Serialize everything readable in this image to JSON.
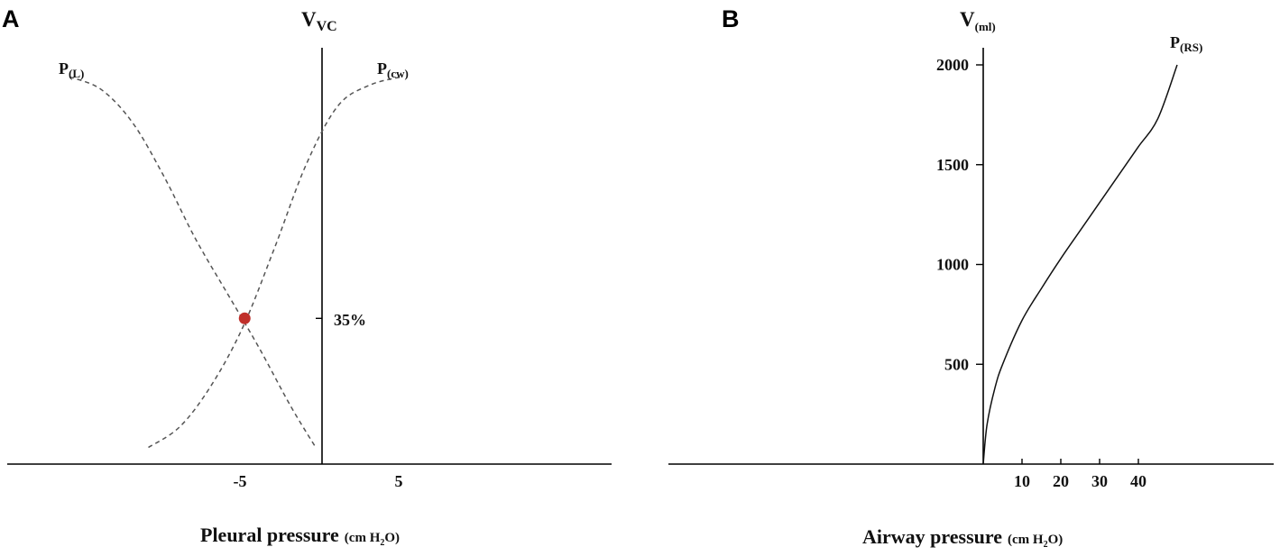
{
  "panels": {
    "a": {
      "letter": "A",
      "y_axis_label": {
        "main": "V",
        "sub": "VC"
      },
      "x_axis_title": {
        "main": "Pleural  pressure",
        "unit_pre": "(cm H",
        "unit_sub": "2",
        "unit_post": "O)"
      },
      "x_ticks": [
        "-5",
        "5"
      ],
      "equilibrium_label": "35%",
      "curve_labels": {
        "lung": {
          "main": "P",
          "sub": "(L)"
        },
        "chest_wall": {
          "main": "P",
          "sub": "(cw)"
        }
      },
      "marker_color": "#c0302b"
    },
    "b": {
      "letter": "B",
      "y_axis_label": {
        "main": "V",
        "sub": "(ml)"
      },
      "x_axis_title": {
        "main": "Airway  pressure",
        "unit_pre": "(cm H",
        "unit_sub": "2",
        "unit_post": "O)"
      },
      "y_ticks": [
        "500",
        "1000",
        "1500",
        "2000"
      ],
      "x_ticks": [
        "10",
        "20",
        "30",
        "40"
      ],
      "curve_label": {
        "main": "P",
        "sub": "(RS)"
      }
    }
  },
  "chart_data": [
    {
      "type": "line",
      "panel": "A",
      "xlabel": "Pleural pressure (cm H2O)",
      "ylabel": "VVC",
      "x_ticks": [
        -5,
        5
      ],
      "xlim": [
        -20,
        19.5
      ],
      "ylim": [
        0,
        100
      ],
      "series": [
        {
          "name": "P(L)",
          "style": "dashed",
          "x": [
            -16,
            -14,
            -12,
            -10,
            -8,
            -6,
            -4,
            -2,
            -0.4
          ],
          "y": [
            93,
            90,
            82,
            69,
            54,
            41,
            28,
            14,
            4
          ]
        },
        {
          "name": "P(cw)",
          "style": "dashed",
          "x": [
            -11,
            -9,
            -7,
            -5,
            -3,
            -1,
            1,
            3,
            5
          ],
          "y": [
            4,
            9,
            19,
            33,
            52,
            72,
            86,
            91,
            93
          ]
        }
      ],
      "annotations": [
        {
          "text": "35%",
          "x": -4.9,
          "y": 35,
          "marker": "dot"
        }
      ]
    },
    {
      "type": "line",
      "panel": "B",
      "xlabel": "Airway pressure (cm H2O)",
      "ylabel": "V(ml)",
      "x_ticks": [
        10,
        20,
        30,
        40
      ],
      "y_ticks": [
        500,
        1000,
        1500,
        2000
      ],
      "xlim": [
        0,
        51
      ],
      "ylim": [
        0,
        2000
      ],
      "series": [
        {
          "name": "P(RS)",
          "style": "solid",
          "x": [
            0,
            1,
            3,
            5,
            10,
            15,
            20,
            25,
            30,
            35,
            40,
            45,
            50
          ],
          "y": [
            0,
            200,
            380,
            500,
            720,
            880,
            1030,
            1170,
            1310,
            1450,
            1590,
            1730,
            2000
          ]
        }
      ]
    }
  ]
}
